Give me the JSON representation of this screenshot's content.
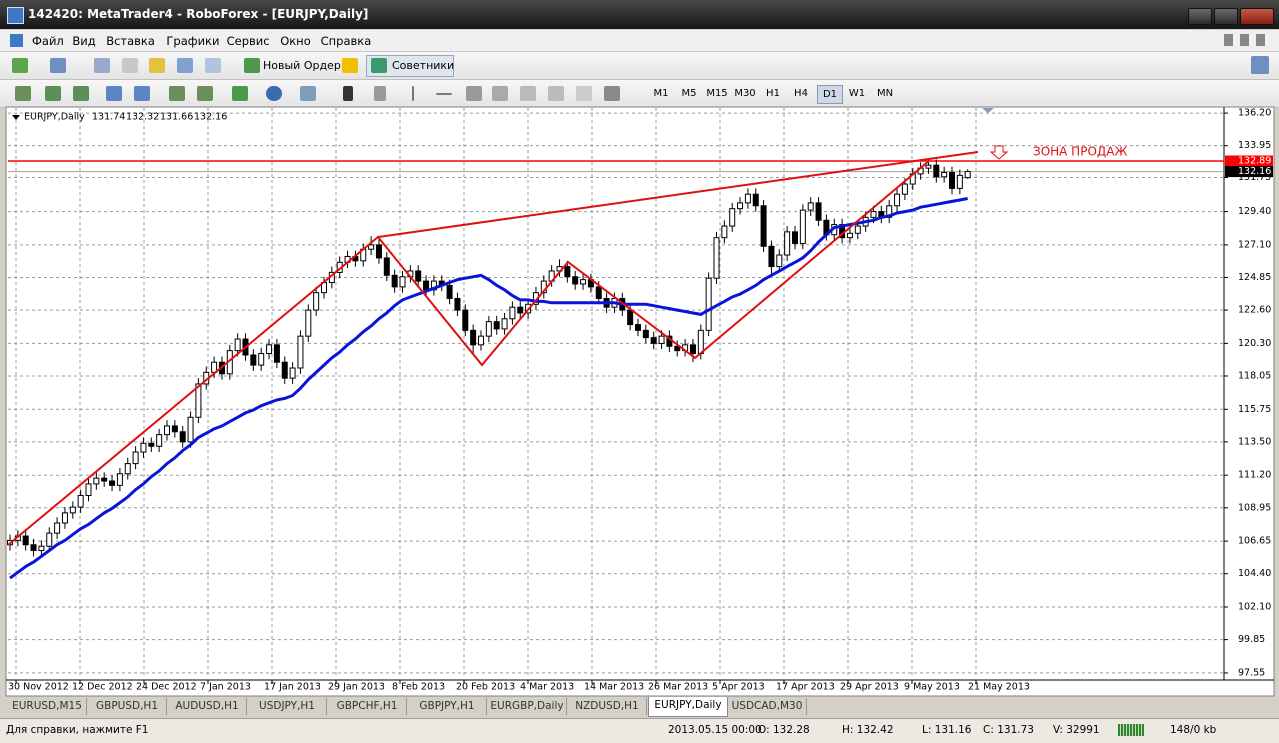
{
  "window": {
    "title": "142420: MetaTrader4 - RoboForex - [EURJPY,Daily]"
  },
  "menu": [
    "Файл",
    "Вид",
    "Вставка",
    "Графики",
    "Сервис",
    "Окно",
    "Справка"
  ],
  "toolbar": {
    "new_order": "Новый Ордер",
    "experts": "Советники",
    "timeframes": [
      "M1",
      "M5",
      "M15",
      "M30",
      "H1",
      "H4",
      "D1",
      "W1",
      "MN"
    ],
    "active_timeframe": "D1"
  },
  "chart_data": {
    "type": "candlestick",
    "symbol": "EURJPY,Daily",
    "ohlc": [
      131.74,
      132.32,
      131.66,
      132.16
    ],
    "ylim": [
      97.2,
      136.55
    ],
    "yticks": [
      {
        "value": 136.2,
        "label": "136.20"
      },
      133.95,
      131.75,
      {
        "value": 129.4,
        "label": "129.40"
      },
      {
        "value": 127.1,
        "label": "127.10"
      },
      124.85,
      {
        "value": 122.6,
        "label": "122.60"
      },
      {
        "value": 120.3,
        "label": "120.30"
      },
      118.05,
      115.75,
      {
        "value": 113.5,
        "label": "113.50"
      },
      {
        "value": 111.2,
        "label": "111.20"
      },
      108.95,
      106.65,
      {
        "value": 104.4,
        "label": "104.40"
      },
      {
        "value": 102.1,
        "label": "102.10"
      },
      99.85,
      97.55
    ],
    "grid": true,
    "dates": [
      "30 Nov 2012",
      "12 Dec 2012",
      "24 Dec 2012",
      "7 Jan 2013",
      "17 Jan 2013",
      "29 Jan 2013",
      "8 Feb 2013",
      "20 Feb 2013",
      "4 Mar 2013",
      "14 Mar 2013",
      "26 Mar 2013",
      "5 Apr 2013",
      "17 Apr 2013",
      "29 Apr 2013",
      "9 May 2013",
      "21 May 2013"
    ],
    "candle_color": "#000000",
    "candles": [
      [
        106.4,
        107.1,
        106.0,
        106.7
      ],
      [
        106.7,
        107.4,
        106.3,
        107.0
      ],
      [
        107.0,
        107.4,
        106.0,
        106.4
      ],
      [
        106.4,
        106.8,
        105.6,
        106.0
      ],
      [
        106.0,
        106.7,
        105.6,
        106.3
      ],
      [
        106.3,
        107.6,
        105.9,
        107.2
      ],
      [
        107.2,
        108.3,
        106.8,
        107.9
      ],
      [
        107.9,
        109.0,
        107.5,
        108.6
      ],
      [
        108.6,
        109.4,
        108.2,
        109.0
      ],
      [
        109.0,
        110.2,
        108.6,
        109.8
      ],
      [
        109.8,
        111.0,
        109.4,
        110.6
      ],
      [
        110.6,
        111.4,
        110.2,
        111.0
      ],
      [
        111.0,
        111.4,
        110.4,
        110.8
      ],
      [
        110.8,
        111.2,
        110.1,
        110.5
      ],
      [
        110.5,
        111.7,
        110.1,
        111.3
      ],
      [
        111.3,
        112.4,
        110.9,
        112.0
      ],
      [
        112.0,
        113.2,
        111.6,
        112.8
      ],
      [
        112.8,
        113.8,
        112.4,
        113.4
      ],
      [
        113.4,
        113.8,
        112.8,
        113.2
      ],
      [
        113.2,
        114.4,
        112.8,
        114.0
      ],
      [
        114.0,
        115.0,
        113.6,
        114.6
      ],
      [
        114.6,
        115.0,
        113.8,
        114.2
      ],
      [
        114.2,
        114.6,
        113.1,
        113.5
      ],
      [
        113.5,
        115.6,
        113.1,
        115.2
      ],
      [
        115.2,
        117.9,
        114.8,
        117.5
      ],
      [
        117.5,
        118.7,
        117.1,
        118.3
      ],
      [
        118.3,
        119.4,
        117.9,
        119.0
      ],
      [
        119.0,
        119.4,
        117.8,
        118.2
      ],
      [
        118.2,
        120.2,
        117.8,
        119.8
      ],
      [
        119.8,
        121.0,
        119.4,
        120.6
      ],
      [
        120.6,
        121.0,
        119.1,
        119.5
      ],
      [
        119.5,
        119.9,
        118.4,
        118.8
      ],
      [
        118.8,
        120.0,
        118.4,
        119.6
      ],
      [
        119.6,
        120.6,
        119.2,
        120.2
      ],
      [
        120.2,
        120.6,
        118.6,
        119.0
      ],
      [
        119.0,
        119.4,
        117.5,
        117.9
      ],
      [
        117.9,
        119.0,
        117.5,
        118.6
      ],
      [
        118.6,
        121.2,
        118.2,
        120.8
      ],
      [
        120.8,
        123.0,
        120.4,
        122.6
      ],
      [
        122.6,
        124.2,
        122.2,
        123.8
      ],
      [
        123.8,
        124.9,
        123.4,
        124.5
      ],
      [
        124.5,
        125.6,
        124.1,
        125.2
      ],
      [
        125.2,
        126.3,
        124.8,
        125.9
      ],
      [
        125.9,
        126.7,
        125.5,
        126.3
      ],
      [
        126.3,
        126.7,
        125.6,
        126.0
      ],
      [
        126.0,
        127.2,
        125.6,
        126.8
      ],
      [
        126.8,
        127.7,
        126.4,
        127.1
      ],
      [
        127.1,
        127.5,
        125.8,
        126.2
      ],
      [
        126.2,
        126.6,
        124.6,
        125.0
      ],
      [
        125.0,
        125.4,
        123.8,
        124.2
      ],
      [
        124.2,
        125.3,
        123.8,
        124.9
      ],
      [
        124.9,
        125.7,
        124.5,
        125.3
      ],
      [
        125.3,
        125.7,
        124.2,
        124.6
      ],
      [
        124.6,
        125.0,
        123.6,
        124.0
      ],
      [
        124.0,
        125.0,
        123.6,
        124.6
      ],
      [
        124.6,
        125.0,
        123.9,
        124.3
      ],
      [
        124.3,
        124.7,
        123.0,
        123.4
      ],
      [
        123.4,
        123.8,
        122.2,
        122.6
      ],
      [
        122.6,
        123.0,
        120.8,
        121.2
      ],
      [
        121.2,
        121.6,
        119.6,
        120.2
      ],
      [
        120.2,
        121.2,
        119.8,
        120.8
      ],
      [
        120.8,
        122.2,
        120.4,
        121.8
      ],
      [
        121.8,
        122.2,
        120.9,
        121.3
      ],
      [
        121.3,
        122.4,
        120.9,
        122.0
      ],
      [
        122.0,
        123.2,
        121.6,
        122.8
      ],
      [
        122.8,
        123.2,
        122.0,
        122.4
      ],
      [
        122.4,
        123.4,
        122.0,
        123.0
      ],
      [
        123.0,
        124.2,
        122.6,
        123.8
      ],
      [
        123.8,
        125.0,
        123.4,
        124.6
      ],
      [
        124.6,
        125.7,
        124.2,
        125.3
      ],
      [
        125.3,
        126.1,
        124.9,
        125.6
      ],
      [
        125.6,
        126.0,
        124.5,
        124.9
      ],
      [
        124.9,
        125.3,
        124.0,
        124.4
      ],
      [
        124.4,
        125.1,
        124.0,
        124.7
      ],
      [
        124.7,
        125.1,
        123.8,
        124.2
      ],
      [
        124.2,
        124.6,
        123.0,
        123.4
      ],
      [
        123.4,
        123.8,
        122.4,
        122.8
      ],
      [
        122.8,
        123.8,
        122.4,
        123.4
      ],
      [
        123.4,
        123.8,
        122.2,
        122.6
      ],
      [
        122.6,
        123.0,
        121.2,
        121.6
      ],
      [
        121.6,
        122.0,
        120.8,
        121.2
      ],
      [
        121.2,
        121.6,
        120.3,
        120.7
      ],
      [
        120.7,
        121.1,
        119.9,
        120.3
      ],
      [
        120.3,
        121.2,
        119.9,
        120.8
      ],
      [
        120.8,
        121.2,
        119.7,
        120.1
      ],
      [
        120.1,
        120.5,
        119.4,
        119.8
      ],
      [
        119.8,
        120.6,
        119.4,
        120.2
      ],
      [
        120.2,
        120.6,
        119.0,
        119.6
      ],
      [
        119.6,
        121.6,
        119.2,
        121.2
      ],
      [
        121.2,
        125.2,
        120.8,
        124.8
      ],
      [
        124.8,
        128.0,
        124.4,
        127.6
      ],
      [
        127.6,
        128.8,
        127.2,
        128.4
      ],
      [
        128.4,
        130.0,
        128.0,
        129.6
      ],
      [
        129.6,
        130.4,
        129.2,
        130.0
      ],
      [
        130.0,
        131.0,
        129.6,
        130.6
      ],
      [
        130.6,
        131.0,
        129.4,
        129.8
      ],
      [
        129.8,
        130.2,
        126.6,
        127.0
      ],
      [
        127.0,
        127.4,
        125.0,
        125.6
      ],
      [
        125.6,
        126.8,
        125.2,
        126.4
      ],
      [
        126.4,
        128.4,
        126.0,
        128.0
      ],
      [
        128.0,
        128.4,
        126.8,
        127.2
      ],
      [
        127.2,
        129.9,
        126.8,
        129.5
      ],
      [
        129.5,
        130.4,
        129.1,
        130.0
      ],
      [
        130.0,
        130.4,
        128.4,
        128.8
      ],
      [
        128.8,
        129.2,
        127.4,
        127.8
      ],
      [
        127.8,
        128.9,
        127.4,
        128.5
      ],
      [
        128.5,
        128.9,
        127.2,
        127.6
      ],
      [
        127.6,
        128.3,
        127.2,
        127.9
      ],
      [
        127.9,
        128.8,
        127.5,
        128.4
      ],
      [
        128.4,
        129.4,
        128.0,
        129.0
      ],
      [
        129.0,
        129.8,
        128.6,
        129.4
      ],
      [
        129.4,
        129.8,
        128.6,
        129.0
      ],
      [
        129.0,
        130.2,
        128.6,
        129.8
      ],
      [
        129.8,
        131.0,
        129.4,
        130.6
      ],
      [
        130.6,
        131.7,
        130.2,
        131.3
      ],
      [
        131.3,
        132.4,
        130.9,
        132.0
      ],
      [
        132.0,
        132.8,
        131.6,
        132.4
      ],
      [
        132.4,
        132.9,
        132.0,
        132.6
      ],
      [
        132.6,
        133.0,
        131.4,
        131.8
      ],
      [
        131.8,
        132.5,
        131.4,
        132.1
      ],
      [
        132.1,
        132.5,
        130.6,
        131.0
      ],
      [
        131.0,
        132.3,
        130.6,
        131.9
      ],
      [
        131.74,
        132.32,
        131.66,
        132.16
      ]
    ],
    "ma_color": "#0a14d8",
    "ma": [
      104.1,
      104.5,
      104.9,
      105.2,
      105.6,
      106.0,
      106.4,
      106.7,
      107.1,
      107.5,
      107.8,
      108.2,
      108.6,
      108.9,
      109.3,
      109.7,
      110.2,
      110.6,
      111.1,
      111.5,
      112.0,
      112.4,
      112.9,
      113.3,
      113.8,
      114.1,
      114.4,
      114.6,
      114.9,
      115.2,
      115.5,
      115.7,
      116.0,
      116.2,
      116.4,
      116.5,
      116.7,
      117.2,
      117.8,
      118.3,
      118.8,
      119.3,
      119.7,
      120.2,
      120.6,
      121.1,
      121.5,
      122.0,
      122.4,
      122.9,
      123.3,
      123.5,
      123.7,
      123.9,
      124.1,
      124.3,
      124.5,
      124.7,
      124.8,
      124.9,
      125.0,
      124.7,
      124.3,
      124.0,
      123.6,
      123.3,
      123.3,
      123.2,
      123.2,
      123.1,
      123.1,
      123.1,
      123.1,
      123.1,
      123.1,
      123.1,
      123.1,
      123.1,
      123.0,
      123.0,
      123.0,
      123.0,
      122.9,
      122.8,
      122.7,
      122.6,
      122.5,
      122.4,
      122.3,
      122.6,
      122.9,
      123.2,
      123.5,
      123.7,
      124.0,
      124.3,
      124.7,
      125.0,
      125.3,
      125.6,
      125.9,
      126.2,
      126.7,
      127.3,
      127.8,
      128.3,
      128.4,
      128.5,
      128.6,
      128.7,
      128.8,
      129.0,
      129.1,
      129.3,
      129.4,
      129.5,
      129.7,
      129.8,
      129.9,
      130.0,
      130.1,
      130.2,
      130.3
    ],
    "level": 132.89,
    "level_color": "#ff0000",
    "bid": 132.16,
    "annotation": "ЗОНА ПРОДАЖ"
  },
  "tabs": [
    "EURUSD,M15",
    "GBPUSD,H1",
    "AUDUSD,H1",
    "USDJPY,H1",
    "GBPCHF,H1",
    "GBPJPY,H1",
    "EURGBP,Daily",
    "NZDUSD,H1",
    "EURJPY,Daily",
    "USDCAD,M30"
  ],
  "active_tab": "EURJPY,Daily",
  "status": {
    "help": "Для справки, нажмите F1",
    "time": "2013.05.15 00:00",
    "open": "O: 132.28",
    "high": "H: 132.42",
    "low": "L: 131.16",
    "close": "C: 131.73",
    "volume": "V: 32991",
    "traffic": "148/0 kb"
  }
}
